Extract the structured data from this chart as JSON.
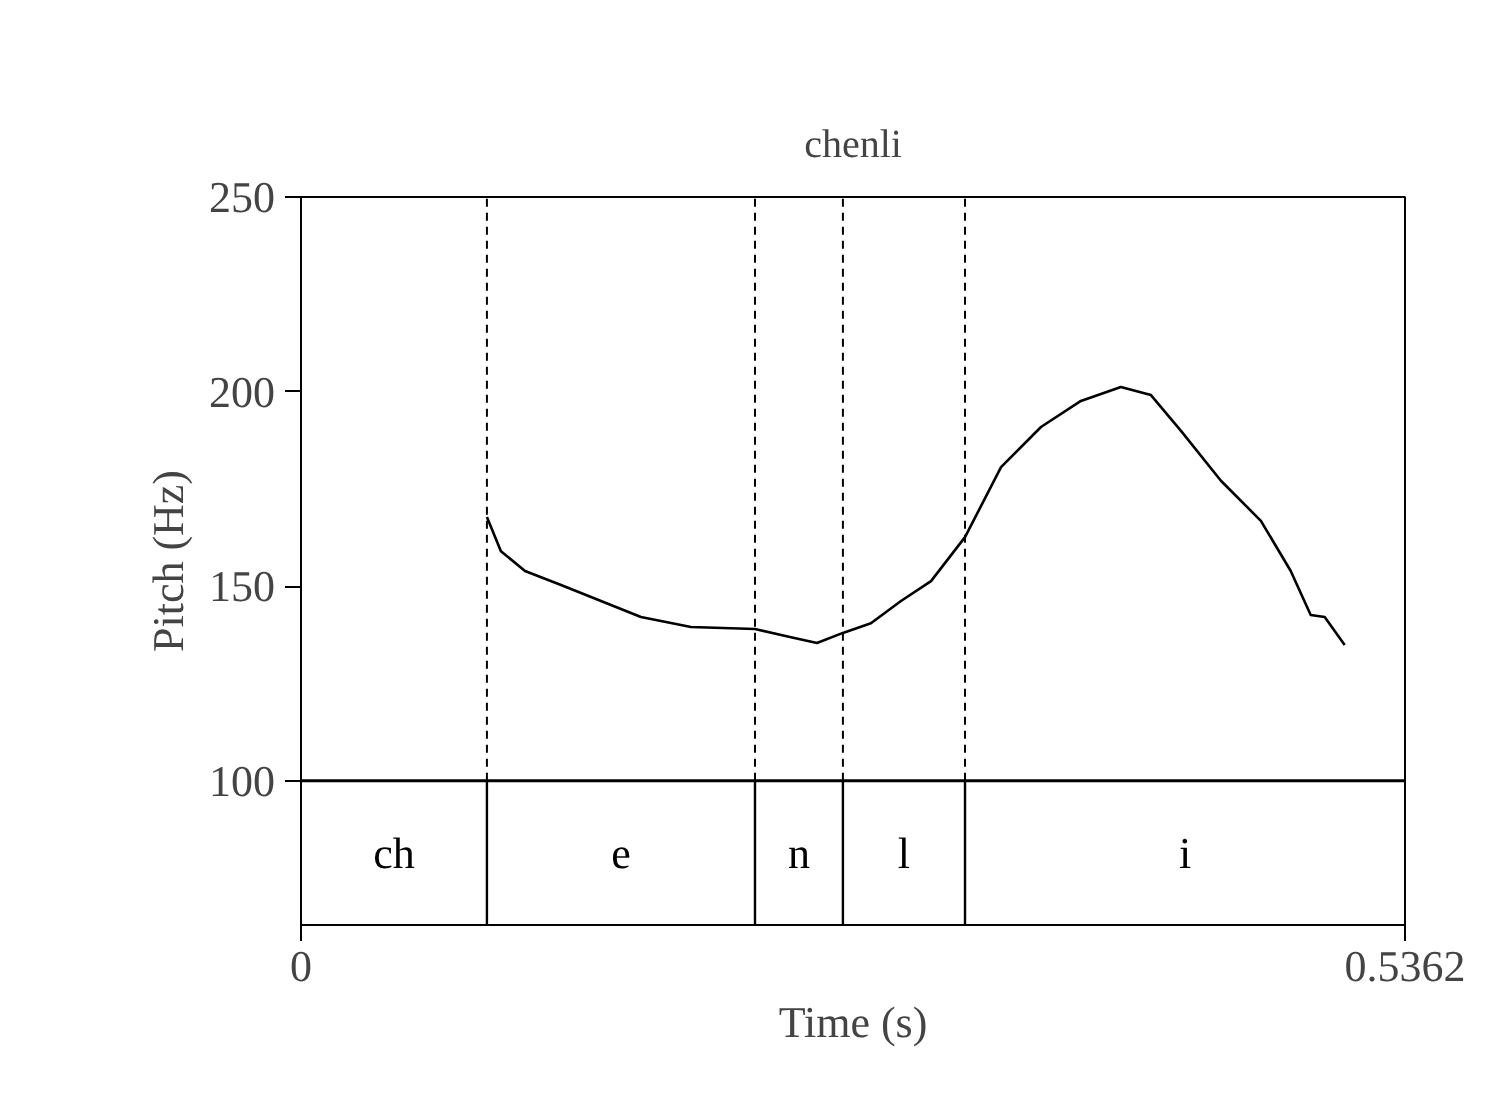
{
  "chart_data": {
    "type": "line",
    "title": "chenli",
    "xlabel": "Time (s)",
    "ylabel": "Pitch (Hz)",
    "xlim": [
      0,
      0.5362
    ],
    "xticks": [
      0,
      0.5362
    ],
    "ylim": [
      100,
      250
    ],
    "yticks": [
      100,
      150,
      200,
      250
    ],
    "grid": false,
    "marker": "none",
    "line_style": "solid",
    "series": [
      {
        "color": "#000000",
        "x": [
          0.0903,
          0.0971,
          0.1088,
          0.1263,
          0.1457,
          0.1651,
          0.1894,
          0.2205,
          0.238,
          0.2506,
          0.2632,
          0.2768,
          0.2914,
          0.306,
          0.3225,
          0.34,
          0.3594,
          0.3788,
          0.3982,
          0.4128,
          0.4274,
          0.4468,
          0.4662,
          0.4807,
          0.4904,
          0.4972,
          0.5069
        ],
        "values": [
          167.8,
          159.0,
          153.9,
          150.3,
          146.2,
          142.1,
          139.5,
          139.0,
          136.9,
          135.4,
          138.0,
          140.5,
          146.2,
          151.3,
          162.6,
          180.6,
          190.9,
          197.6,
          201.2,
          199.1,
          189.9,
          177.1,
          166.8,
          153.9,
          142.6,
          142.1,
          134.9
        ]
      }
    ],
    "ref_lines": [
      {
        "axis": "x",
        "value": 0.0903,
        "line_style": "dashed"
      },
      {
        "axis": "x",
        "value": 0.2205,
        "line_style": "dashed"
      },
      {
        "axis": "x",
        "value": 0.2632,
        "line_style": "dashed"
      },
      {
        "axis": "x",
        "value": 0.3225,
        "line_style": "dashed"
      }
    ],
    "annotations": [
      "ch",
      "e",
      "n",
      "l",
      "i"
    ]
  }
}
